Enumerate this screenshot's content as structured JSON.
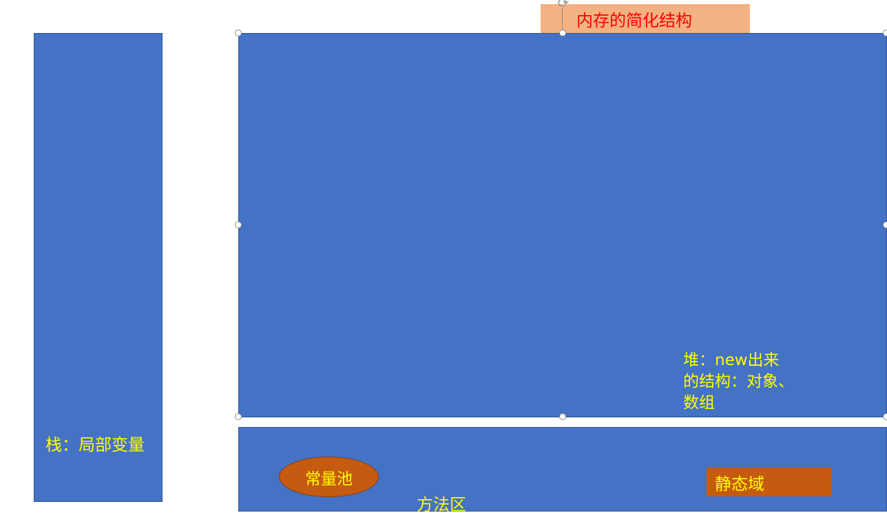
{
  "diagram": {
    "title": "内存的简化结构",
    "stack": {
      "label": "栈：局部变量"
    },
    "heap": {
      "label_lines": [
        "堆：new出来",
        "的结构：对象、",
        "数组"
      ]
    },
    "method_area": {
      "label": "方法区",
      "constant_pool": "常量池",
      "static_field": "静态域"
    }
  },
  "colors": {
    "block_fill": "#4472c4",
    "block_border": "#2f5597",
    "label_text": "#ffff00",
    "inner_fill": "#c55a11",
    "title_fill": "#f4b183",
    "title_text": "#ff0000"
  },
  "icons": [
    "rotate-handle-icon",
    "resize-handle-icon"
  ]
}
